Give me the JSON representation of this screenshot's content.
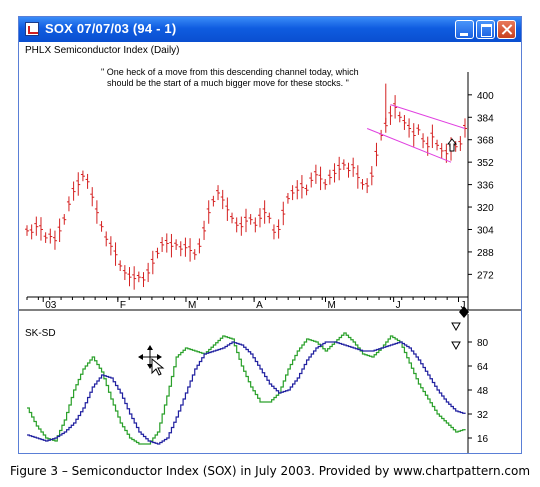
{
  "window": {
    "title": "SOX 07/07/03 (94 - 1)"
  },
  "price_panel": {
    "label": "PHLX Semiconductor Index (Daily)",
    "annotation_line1": "\" One heck of a move from this descending channel today, which",
    "annotation_line2": "should be the start of a much bigger move for these stocks. \"",
    "y_ticks": [
      "400",
      "384",
      "368",
      "352",
      "336",
      "320",
      "304",
      "288",
      "272"
    ],
    "x_ticks": [
      "03",
      "F",
      "M",
      "A",
      "M",
      "J",
      "J"
    ]
  },
  "osc_panel": {
    "label": "SK-SD",
    "y_ticks": [
      "80",
      "64",
      "48",
      "32",
      "16"
    ]
  },
  "caption": "Figure 3 – Semiconductor Index (SOX) in July 2003. Provided by www.chartpattern.com",
  "colors": {
    "price_bars": "#d42020",
    "channel": "#e040e0",
    "osc_fast": "#2aa02a",
    "osc_slow": "#2020a0",
    "titlebar": "#0f5ce0"
  },
  "icons": {
    "app": "chart-window-icon",
    "cursor": "move-cursor-icon",
    "arrows": [
      "up-arrow-icon",
      "down-arrow-icon",
      "down-arrow-icon",
      "down-arrow-icon"
    ]
  },
  "chart_data": [
    {
      "type": "ohlc",
      "title": "PHLX Semiconductor Index (Daily)",
      "x_ticks": [
        "03",
        "F",
        "M",
        "A",
        "M",
        "J",
        "J"
      ],
      "y_ticks": [
        400,
        384,
        368,
        352,
        336,
        320,
        304,
        288,
        272
      ],
      "ylim": [
        258,
        412
      ],
      "series": [
        {
          "values": [
            [
              0,
              303
            ],
            [
              2,
              302
            ],
            [
              4,
              306
            ],
            [
              6,
              304
            ],
            [
              8,
              298
            ],
            [
              10,
              299
            ],
            [
              12,
              296
            ],
            [
              14,
              303
            ],
            [
              16,
              311
            ],
            [
              18,
              322
            ],
            [
              20,
              331
            ],
            [
              22,
              336
            ],
            [
              24,
              342
            ],
            [
              26,
              338
            ],
            [
              28,
              327
            ],
            [
              30,
              316
            ],
            [
              32,
              306
            ],
            [
              34,
              297
            ],
            [
              36,
              292
            ],
            [
              38,
              286
            ],
            [
              40,
              278
            ],
            [
              42,
              273
            ],
            [
              44,
              270
            ],
            [
              46,
              269
            ],
            [
              48,
              270
            ],
            [
              50,
              268
            ],
            [
              52,
              273
            ],
            [
              54,
              280
            ],
            [
              56,
              287
            ],
            [
              58,
              293
            ],
            [
              60,
              294
            ],
            [
              62,
              292
            ],
            [
              64,
              293
            ],
            [
              66,
              290
            ],
            [
              68,
              291
            ],
            [
              70,
              289
            ],
            [
              72,
              286
            ],
            [
              74,
              292
            ],
            [
              76,
              303
            ],
            [
              78,
              316
            ],
            [
              80,
              324
            ],
            [
              82,
              330
            ],
            [
              84,
              325
            ],
            [
              86,
              318
            ],
            [
              88,
              312
            ],
            [
              90,
              307
            ],
            [
              92,
              306
            ],
            [
              94,
              310
            ],
            [
              96,
              311
            ],
            [
              98,
              307
            ],
            [
              100,
              312
            ],
            [
              102,
              316
            ],
            [
              104,
              312
            ],
            [
              106,
              302
            ],
            [
              108,
              304
            ],
            [
              110,
              315
            ],
            [
              112,
              326
            ],
            [
              114,
              330
            ],
            [
              116,
              332
            ],
            [
              118,
              334
            ],
            [
              120,
              332
            ],
            [
              122,
              339
            ],
            [
              124,
              343
            ],
            [
              126,
              340
            ],
            [
              128,
              336
            ],
            [
              130,
              341
            ],
            [
              132,
              344
            ],
            [
              134,
              347
            ],
            [
              136,
              350
            ],
            [
              138,
              346
            ],
            [
              140,
              348
            ],
            [
              142,
              341
            ],
            [
              144,
              336
            ],
            [
              146,
              335
            ],
            [
              148,
              342
            ],
            [
              150,
              357
            ],
            [
              152,
              371
            ],
            [
              154,
              378
            ],
            [
              156,
              385
            ],
            [
              158,
              391
            ],
            [
              160,
              384
            ],
            [
              162,
              380
            ],
            [
              164,
              376
            ],
            [
              166,
              371
            ],
            [
              168,
              375
            ],
            [
              170,
              367
            ],
            [
              172,
              363
            ],
            [
              174,
              370
            ],
            [
              176,
              364
            ],
            [
              178,
              360
            ],
            [
              180,
              358
            ],
            [
              182,
              361
            ],
            [
              184,
              363
            ],
            [
              186,
              365
            ],
            [
              188,
              376
            ]
          ]
        }
      ]
    },
    {
      "type": "line",
      "title": "SK-SD",
      "y_ticks": [
        80,
        64,
        48,
        32,
        16
      ],
      "ylim": [
        10,
        96
      ],
      "series": [
        {
          "values": [
            [
              0,
              36
            ],
            [
              4,
              24
            ],
            [
              8,
              16
            ],
            [
              12,
              14
            ],
            [
              16,
              28
            ],
            [
              20,
              48
            ],
            [
              24,
              62
            ],
            [
              28,
              70
            ],
            [
              32,
              60
            ],
            [
              36,
              42
            ],
            [
              40,
              26
            ],
            [
              44,
              16
            ],
            [
              48,
              12
            ],
            [
              52,
              12
            ],
            [
              56,
              20
            ],
            [
              60,
              44
            ],
            [
              64,
              70
            ],
            [
              68,
              76
            ],
            [
              72,
              74
            ],
            [
              76,
              72
            ],
            [
              80,
              78
            ],
            [
              84,
              84
            ],
            [
              88,
              82
            ],
            [
              92,
              64
            ],
            [
              96,
              50
            ],
            [
              100,
              40
            ],
            [
              104,
              40
            ],
            [
              108,
              46
            ],
            [
              112,
              62
            ],
            [
              116,
              74
            ],
            [
              120,
              82
            ],
            [
              124,
              80
            ],
            [
              128,
              74
            ],
            [
              132,
              80
            ],
            [
              136,
              86
            ],
            [
              140,
              80
            ],
            [
              144,
              72
            ],
            [
              148,
              70
            ],
            [
              152,
              76
            ],
            [
              156,
              84
            ],
            [
              160,
              80
            ],
            [
              164,
              66
            ],
            [
              168,
              52
            ],
            [
              172,
              42
            ],
            [
              176,
              32
            ],
            [
              180,
              26
            ],
            [
              184,
              20
            ],
            [
              188,
              22
            ]
          ]
        },
        {
          "values": [
            [
              0,
              18
            ],
            [
              4,
              16
            ],
            [
              8,
              14
            ],
            [
              12,
              16
            ],
            [
              16,
              20
            ],
            [
              20,
              26
            ],
            [
              24,
              36
            ],
            [
              28,
              50
            ],
            [
              32,
              58
            ],
            [
              36,
              56
            ],
            [
              40,
              46
            ],
            [
              44,
              32
            ],
            [
              48,
              20
            ],
            [
              52,
              14
            ],
            [
              56,
              12
            ],
            [
              60,
              16
            ],
            [
              64,
              30
            ],
            [
              68,
              46
            ],
            [
              72,
              62
            ],
            [
              76,
              72
            ],
            [
              80,
              74
            ],
            [
              84,
              76
            ],
            [
              88,
              80
            ],
            [
              92,
              78
            ],
            [
              96,
              72
            ],
            [
              100,
              62
            ],
            [
              104,
              52
            ],
            [
              108,
              46
            ],
            [
              112,
              48
            ],
            [
              116,
              56
            ],
            [
              120,
              68
            ],
            [
              124,
              76
            ],
            [
              128,
              80
            ],
            [
              132,
              80
            ],
            [
              136,
              78
            ],
            [
              140,
              76
            ],
            [
              144,
              74
            ],
            [
              148,
              74
            ],
            [
              152,
              76
            ],
            [
              156,
              78
            ],
            [
              160,
              80
            ],
            [
              164,
              76
            ],
            [
              168,
              68
            ],
            [
              172,
              58
            ],
            [
              176,
              48
            ],
            [
              180,
              40
            ],
            [
              184,
              34
            ],
            [
              188,
              32
            ]
          ]
        }
      ]
    }
  ]
}
